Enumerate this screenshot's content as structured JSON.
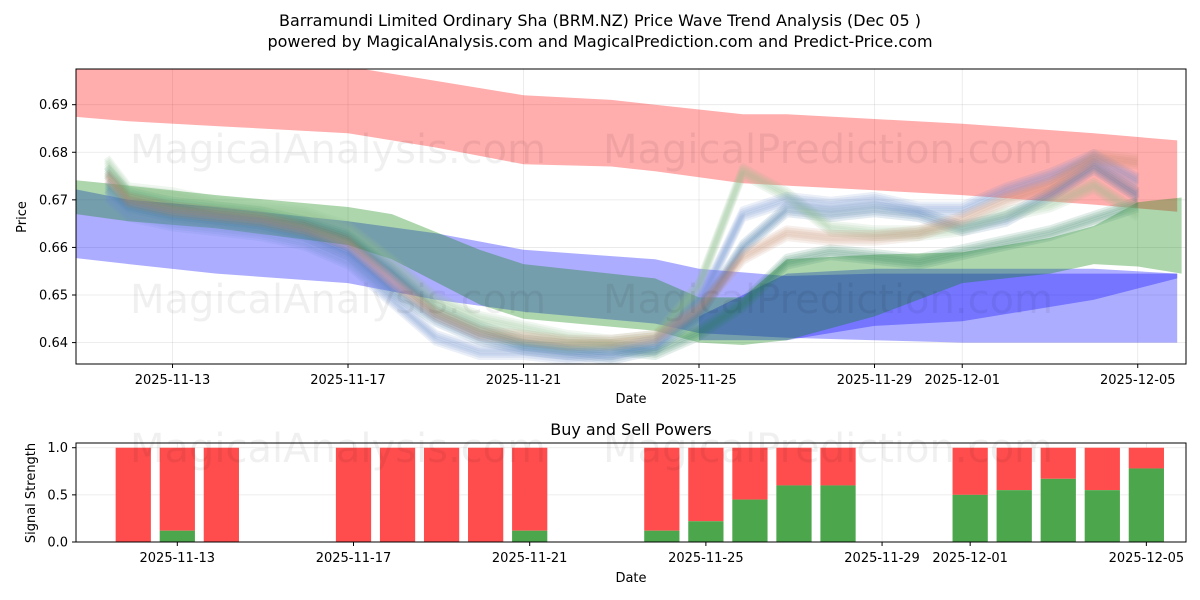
{
  "chart_data": [
    {
      "type": "area",
      "title_line1": "Barramundi Limited Ordinary Sha (BRM.NZ) Price Wave Trend Analysis (Dec 05 )",
      "title_line2": "powered by MagicalAnalysis.com and MagicalPrediction.com and Predict-Price.com",
      "xlabel": "Date",
      "ylabel": "Price",
      "ylim": [
        0.6355,
        0.6975
      ],
      "xlim": [
        -2.2,
        23.1
      ],
      "yticks": [
        0.64,
        0.65,
        0.66,
        0.67,
        0.68,
        0.69
      ],
      "xticks": [
        {
          "pos": 0,
          "label": "2025-11-13"
        },
        {
          "pos": 4,
          "label": "2025-11-17"
        },
        {
          "pos": 8,
          "label": "2025-11-21"
        },
        {
          "pos": 12,
          "label": "2025-11-25"
        },
        {
          "pos": 16,
          "label": "2025-11-29"
        },
        {
          "pos": 18,
          "label": "2025-12-01"
        },
        {
          "pos": 22,
          "label": "2025-12-05"
        }
      ],
      "bands": [
        {
          "name": "red-band",
          "color": "#ff0000",
          "x": [
            -2.9,
            -1.0,
            1.0,
            4.0,
            6.0,
            8.0,
            10.0,
            11.0,
            13.0,
            14.0,
            16.0,
            18.0,
            21.0,
            22.9
          ],
          "upper": [
            0.702,
            0.7,
            0.699,
            0.698,
            0.695,
            0.692,
            0.691,
            0.69,
            0.688,
            0.688,
            0.687,
            0.686,
            0.684,
            0.6825
          ],
          "lower": [
            0.688,
            0.6865,
            0.6855,
            0.684,
            0.681,
            0.6775,
            0.677,
            0.676,
            0.6735,
            0.673,
            0.672,
            0.671,
            0.669,
            0.6675
          ]
        },
        {
          "name": "blue-band",
          "color": "#0000ff",
          "x": [
            -2.9,
            -1.0,
            1.0,
            4.0,
            6.0,
            8.0,
            11.0,
            12.0,
            14.0,
            16.0,
            18.0,
            21.0,
            22.9
          ],
          "upper": [
            0.6735,
            0.67,
            0.6685,
            0.6655,
            0.663,
            0.6595,
            0.6575,
            0.6555,
            0.654,
            0.6545,
            0.6545,
            0.6545,
            0.6545
          ],
          "lower": [
            0.6585,
            0.6565,
            0.6545,
            0.6525,
            0.649,
            0.6465,
            0.644,
            0.642,
            0.641,
            0.6405,
            0.64,
            0.64,
            0.64
          ]
        },
        {
          "name": "blue-rise-band",
          "color": "#0000ff",
          "x": [
            12.0,
            14.0,
            16.0,
            18.0,
            21.0,
            22.9
          ],
          "upper": [
            0.6455,
            0.6545,
            0.6555,
            0.6555,
            0.6555,
            0.6545
          ],
          "lower": [
            0.6405,
            0.6405,
            0.6435,
            0.6445,
            0.649,
            0.6535
          ]
        },
        {
          "name": "green-band",
          "color": "#008000",
          "x": [
            -2.6,
            -1.0,
            1.0,
            4.0,
            5.0,
            7.0,
            8.0,
            11.0,
            12.0,
            13.0,
            14.0,
            16.0,
            18.0,
            20.0,
            21.0,
            22.0,
            23.0
          ],
          "upper": [
            0.6745,
            0.673,
            0.671,
            0.6685,
            0.667,
            0.6595,
            0.6565,
            0.6535,
            0.6495,
            0.6495,
            0.6575,
            0.6585,
            0.659,
            0.662,
            0.6645,
            0.6695,
            0.6705
          ],
          "lower": [
            0.6675,
            0.6655,
            0.664,
            0.6605,
            0.6575,
            0.648,
            0.645,
            0.6425,
            0.64,
            0.6395,
            0.6405,
            0.6455,
            0.6525,
            0.6545,
            0.6565,
            0.656,
            0.6545
          ]
        }
      ],
      "wave_lines": {
        "x": [
          -1.5,
          -1.0,
          0.0,
          1.0,
          2.0,
          3.0,
          4.0,
          5.0,
          6.0,
          7.0,
          8.0,
          9.0,
          10.0,
          11.0,
          12.0,
          13.0,
          14.0,
          15.0,
          16.0,
          17.0,
          18.0,
          19.0,
          20.0,
          21.0,
          22.0
        ],
        "series": [
          {
            "color": "#2e7d5b",
            "y": [
              0.676,
              0.671,
              0.669,
              0.668,
              0.667,
              0.665,
              0.662,
              0.655,
              0.647,
              0.643,
              0.64,
              0.639,
              0.639,
              0.638,
              0.642,
              0.648,
              0.657,
              0.659,
              0.658,
              0.657,
              0.659,
              0.661,
              0.663,
              0.666,
              0.669
            ]
          },
          {
            "color": "#3a6ea5",
            "y": [
              0.673,
              0.669,
              0.667,
              0.666,
              0.665,
              0.663,
              0.659,
              0.651,
              0.645,
              0.641,
              0.639,
              0.638,
              0.637,
              0.639,
              0.646,
              0.66,
              0.668,
              0.667,
              0.668,
              0.667,
              0.664,
              0.666,
              0.671,
              0.677,
              0.671
            ]
          },
          {
            "color": "#8fbf8f",
            "y": [
              0.678,
              0.672,
              0.671,
              0.669,
              0.668,
              0.667,
              0.664,
              0.657,
              0.649,
              0.645,
              0.643,
              0.641,
              0.64,
              0.641,
              0.652,
              0.676,
              0.671,
              0.664,
              0.663,
              0.663,
              0.664,
              0.667,
              0.669,
              0.673,
              0.667
            ]
          },
          {
            "color": "#6a8fd0",
            "y": [
              0.671,
              0.667,
              0.665,
              0.664,
              0.663,
              0.661,
              0.657,
              0.649,
              0.641,
              0.638,
              0.638,
              0.637,
              0.638,
              0.64,
              0.648,
              0.667,
              0.67,
              0.669,
              0.67,
              0.668,
              0.668,
              0.672,
              0.675,
              0.679,
              0.674
            ]
          },
          {
            "color": "#c89070",
            "y": [
              0.675,
              0.67,
              0.668,
              0.667,
              0.666,
              0.664,
              0.661,
              0.653,
              0.646,
              0.642,
              0.641,
              0.64,
              0.64,
              0.641,
              0.647,
              0.658,
              0.663,
              0.662,
              0.662,
              0.663,
              0.666,
              0.67,
              0.673,
              0.679,
              0.678
            ]
          }
        ]
      }
    },
    {
      "type": "bar",
      "title": "Buy and Sell Powers",
      "xlabel": "Date",
      "ylabel": "Signal Strength",
      "ylim": [
        0,
        1.05
      ],
      "xlim": [
        -2.3,
        22.9
      ],
      "yticks": [
        {
          "value": 0.0,
          "label": "0.0"
        },
        {
          "value": 0.5,
          "label": "0.5"
        },
        {
          "value": 1.0,
          "label": "1.0"
        }
      ],
      "xticks": [
        {
          "pos": 0,
          "label": "2025-11-13"
        },
        {
          "pos": 4,
          "label": "2025-11-17"
        },
        {
          "pos": 8,
          "label": "2025-11-21"
        },
        {
          "pos": 12,
          "label": "2025-11-25"
        },
        {
          "pos": 16,
          "label": "2025-11-29"
        },
        {
          "pos": 18,
          "label": "2025-12-01"
        },
        {
          "pos": 22,
          "label": "2025-12-05"
        }
      ],
      "buy_color": "#4ca64c",
      "sell_color": "#ff4d4d",
      "bars": [
        {
          "pos": -1,
          "buy": 0.0
        },
        {
          "pos": 0,
          "buy": 0.12
        },
        {
          "pos": 1,
          "buy": 0.0
        },
        {
          "pos": 4,
          "buy": 0.0
        },
        {
          "pos": 5,
          "buy": 0.0
        },
        {
          "pos": 6,
          "buy": 0.0
        },
        {
          "pos": 7,
          "buy": 0.0
        },
        {
          "pos": 8,
          "buy": 0.12
        },
        {
          "pos": 11,
          "buy": 0.12
        },
        {
          "pos": 12,
          "buy": 0.22
        },
        {
          "pos": 13,
          "buy": 0.45
        },
        {
          "pos": 14,
          "buy": 0.6
        },
        {
          "pos": 15,
          "buy": 0.6
        },
        {
          "pos": 18,
          "buy": 0.5
        },
        {
          "pos": 19,
          "buy": 0.55
        },
        {
          "pos": 20,
          "buy": 0.67
        },
        {
          "pos": 21,
          "buy": 0.55
        },
        {
          "pos": 22,
          "buy": 0.78
        }
      ]
    }
  ],
  "watermarks": {
    "left": "MagicalAnalysis.com",
    "right": "MagicalPrediction.com"
  }
}
